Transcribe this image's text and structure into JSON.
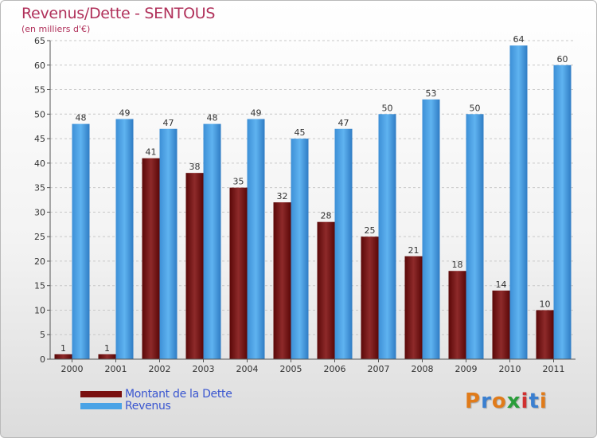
{
  "chart_data": {
    "type": "bar",
    "title": "Revenus/Dette - SENTOUS",
    "subtitle": "(en milliers d'€)",
    "categories": [
      "2000",
      "2001",
      "2002",
      "2003",
      "2004",
      "2005",
      "2006",
      "2007",
      "2008",
      "2009",
      "2010",
      "2011"
    ],
    "series": [
      {
        "name": "Montant de la Dette",
        "color": "#7a1010",
        "values": [
          1,
          1,
          41,
          38,
          35,
          32,
          28,
          25,
          21,
          18,
          14,
          10
        ]
      },
      {
        "name": "Revenus",
        "color": "#4aa3e6",
        "values": [
          48,
          49,
          47,
          48,
          49,
          45,
          47,
          50,
          53,
          50,
          64,
          60
        ]
      }
    ],
    "ylim": [
      0,
      65
    ],
    "yticks": [
      0,
      5,
      10,
      15,
      20,
      25,
      30,
      35,
      40,
      45,
      50,
      55,
      60,
      65
    ],
    "grid": true,
    "legend_position": "bottom-left",
    "data_labels": true
  },
  "branding": {
    "logo_text": "Proxiti",
    "logo_colors": [
      "#e07b1a",
      "#3a7fd0",
      "#e07b1a",
      "#2a9d3a",
      "#d03030",
      "#3a7fd0",
      "#e07b1a"
    ]
  }
}
